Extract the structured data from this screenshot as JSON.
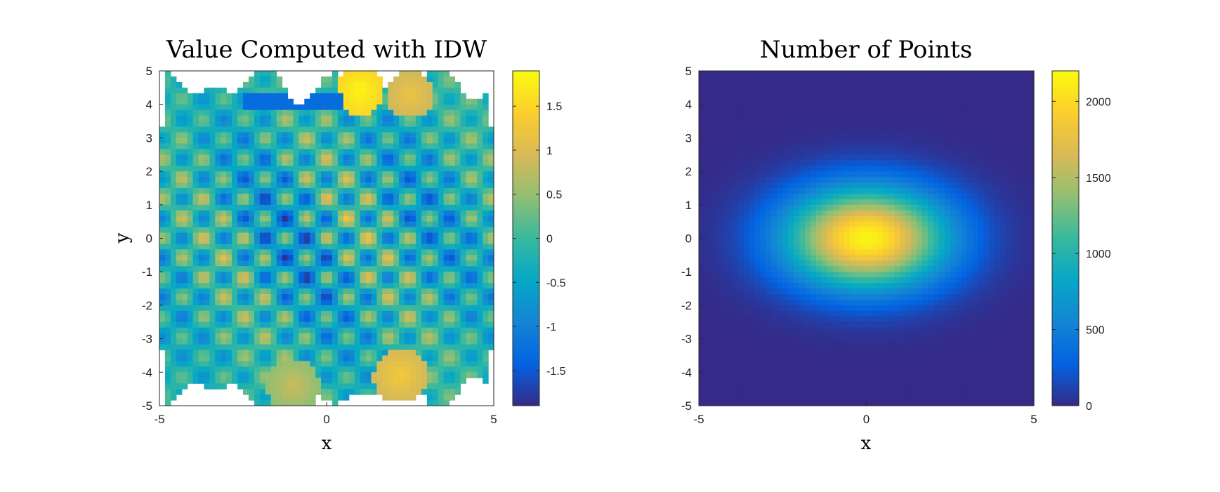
{
  "chart_data": [
    {
      "type": "heatmap",
      "title": "Value Computed with IDW",
      "xlabel": "x",
      "ylabel": "y",
      "xlim": [
        -5,
        5
      ],
      "ylim": [
        -5,
        5
      ],
      "xticks": [
        -5,
        0,
        5
      ],
      "yticks": [
        5,
        4,
        3,
        2,
        1,
        0,
        -1,
        -2,
        -3,
        -4,
        -5
      ],
      "xtick_labels": [
        "-5",
        "0",
        "5"
      ],
      "ytick_labels": [
        "5",
        "4",
        "3",
        "2",
        "1",
        "0",
        "-1",
        "-2",
        "-3",
        "-4",
        "-5"
      ],
      "colormap": "parula",
      "clim": [
        -1.9,
        1.9
      ],
      "colorbar_ticks": [
        1.5,
        1,
        0.5,
        0,
        -0.5,
        -1,
        -1.5
      ],
      "colorbar_tick_labels": [
        "1.5",
        "1",
        "0.5",
        "0",
        "-0.5",
        "-1",
        "-1.5"
      ],
      "grid": false
    },
    {
      "type": "heatmap",
      "title": "Number of Points",
      "xlabel": "x",
      "ylabel": "",
      "xlim": [
        -5,
        5
      ],
      "ylim": [
        -5,
        5
      ],
      "xticks": [
        -5,
        0,
        5
      ],
      "yticks": [
        5,
        4,
        3,
        2,
        1,
        0,
        -1,
        -2,
        -3,
        -4,
        -5
      ],
      "xtick_labels": [
        "-5",
        "0",
        "5"
      ],
      "ytick_labels": [
        "5",
        "4",
        "3",
        "2",
        "1",
        "0",
        "-1",
        "-2",
        "-3",
        "-4",
        "-5"
      ],
      "colormap": "parula",
      "clim": [
        0,
        2200
      ],
      "peak_value": 2150,
      "peak_location": [
        0,
        0
      ],
      "colorbar_ticks": [
        2000,
        1500,
        1000,
        500,
        0
      ],
      "colorbar_tick_labels": [
        "2000",
        "1500",
        "1000",
        "500",
        "0"
      ],
      "grid": false
    }
  ]
}
